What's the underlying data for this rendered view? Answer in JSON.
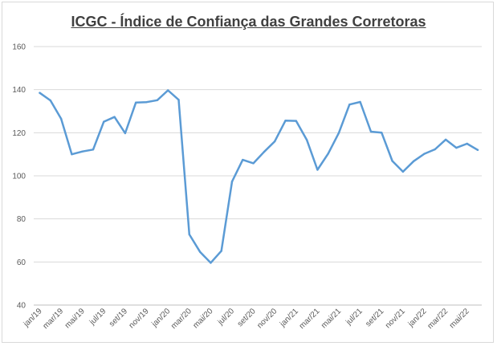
{
  "chart_data": {
    "type": "line",
    "title": "ICGC - Índice de Confiança das Grandes Corretoras",
    "xlabel": "",
    "ylabel": "",
    "ylim": [
      40,
      160
    ],
    "yticks": [
      40,
      60,
      80,
      100,
      120,
      140,
      160
    ],
    "grid": true,
    "legend": "none",
    "line_color": "#5b9bd5",
    "grid_color": "#d9d9d9",
    "x": [
      "jan/19",
      "fev/19",
      "mar/19",
      "abr/19",
      "mai/19",
      "jun/19",
      "jul/19",
      "ago/19",
      "set/19",
      "out/19",
      "nov/19",
      "dez/19",
      "jan/20",
      "fev/20",
      "mar/20",
      "abr/20",
      "mai/20",
      "jun/20",
      "jul/20",
      "ago/20",
      "set/20",
      "out/20",
      "nov/20",
      "dez/20",
      "jan/21",
      "fev/21",
      "mar/21",
      "abr/21",
      "mai/21",
      "jun/21",
      "jul/21",
      "ago/21",
      "set/21",
      "out/21",
      "nov/21",
      "dez/21",
      "jan/22",
      "fev/22",
      "mar/22",
      "abr/22",
      "mai/22",
      "jun/22"
    ],
    "xtick_labels": [
      "jan/19",
      "mar/19",
      "mai/19",
      "jul/19",
      "set/19",
      "nov/19",
      "jan/20",
      "mar/20",
      "mai/20",
      "jul/20",
      "set/20",
      "nov/20",
      "jan/21",
      "mar/21",
      "mai/21",
      "jul/21",
      "set/21",
      "nov/21",
      "jan/22",
      "mar/22",
      "mai/22"
    ],
    "series": [
      {
        "values": [
          138.5,
          135,
          126.5,
          110,
          111.3,
          112.2,
          125.1,
          127.3,
          119.8,
          134,
          134.2,
          135.1,
          139.7,
          135.3,
          72.8,
          64.7,
          59.6,
          65.1,
          97.3,
          107.4,
          105.8,
          111.1,
          116,
          125.6,
          125.5,
          116.7,
          102.8,
          110.3,
          119.9,
          133.1,
          134.3,
          120.5,
          120,
          106.9,
          101.9,
          106.8,
          110.2,
          112.3,
          116.8,
          113,
          114.9,
          112
        ]
      }
    ]
  }
}
